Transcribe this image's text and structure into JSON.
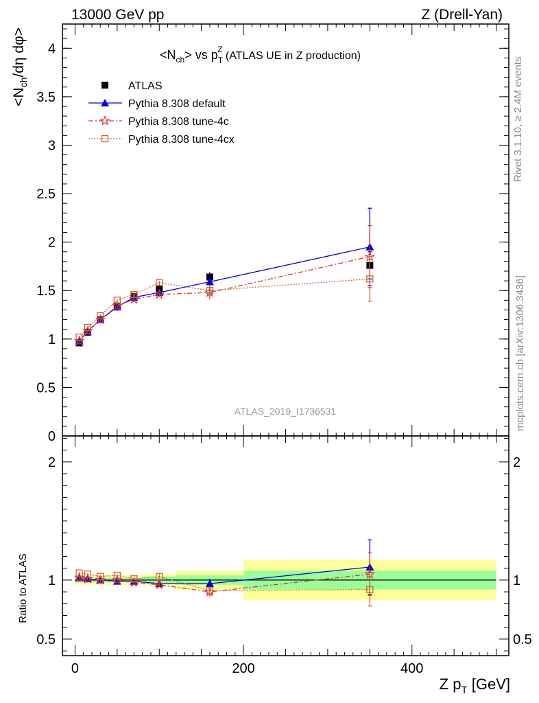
{
  "header": {
    "left": "13000 GeV pp",
    "right": "Z (Drell-Yan)"
  },
  "side_labels": {
    "rivet": "Rivet 3.1.10, ≥ 2.4M events",
    "mcplots": "mcplots.cern.ch [arXiv:1306.3436]"
  },
  "watermark": "ATLAS_2019_I1736531",
  "colors": {
    "atlas": "#000000",
    "default": "#0000dd",
    "tune4c": "#dd3333",
    "tune4cx": "#cc6633",
    "band_inner": "#99ff99",
    "band_outer": "#ffff99"
  },
  "chart_data": [
    {
      "type": "line",
      "panel": "main",
      "title": "<N_ch> vs p_T^Z (ATLAS UE in Z production)",
      "title_parts": {
        "a": "<N",
        "a_sub": "ch",
        "b": "> vs p",
        "b_sub": "T",
        "b_sup": "Z",
        "c": " (ATLAS UE in Z production)"
      },
      "ylabel": "<N_ch/dη dφ>",
      "ylabel_parts": {
        "a": "<N",
        "a_sub": "ch",
        "b": "/dη dφ>"
      },
      "xlim": [
        -15,
        515
      ],
      "ylim": [
        0,
        4.25
      ],
      "y_ticks": [
        0,
        0.5,
        1,
        1.5,
        2,
        2.5,
        3,
        3.5,
        4
      ],
      "y_tick_labels": [
        "0",
        "0.5",
        "1",
        "1.5",
        "2",
        "2.5",
        "3",
        "3.5",
        "4"
      ],
      "legend_position": "top-left",
      "series": [
        {
          "name": "ATLAS",
          "key": "atlas",
          "marker": "square-filled",
          "points": [
            {
              "x": 5,
              "y": 0.96,
              "err": 0.02
            },
            {
              "x": 15,
              "y": 1.07,
              "err": 0.02
            },
            {
              "x": 30,
              "y": 1.2,
              "err": 0.02
            },
            {
              "x": 50,
              "y": 1.34,
              "err": 0.03
            },
            {
              "x": 70,
              "y": 1.44,
              "err": 0.03
            },
            {
              "x": 100,
              "y": 1.52,
              "err": 0.04
            },
            {
              "x": 160,
              "y": 1.64,
              "err": 0.05
            },
            {
              "x": 350,
              "y": 1.76,
              "err": 0.14
            }
          ]
        },
        {
          "name": "Pythia 8.308 default",
          "key": "default",
          "marker": "triangle-filled",
          "dash": "",
          "points": [
            {
              "x": 5,
              "y": 0.98,
              "err": 0.01
            },
            {
              "x": 15,
              "y": 1.08,
              "err": 0.01
            },
            {
              "x": 30,
              "y": 1.2,
              "err": 0.01
            },
            {
              "x": 50,
              "y": 1.33,
              "err": 0.01
            },
            {
              "x": 70,
              "y": 1.43,
              "err": 0.02
            },
            {
              "x": 100,
              "y": 1.48,
              "err": 0.02
            },
            {
              "x": 160,
              "y": 1.59,
              "err": 0.05
            },
            {
              "x": 350,
              "y": 1.95,
              "err": 0.4
            }
          ]
        },
        {
          "name": "Pythia 8.308 tune-4c",
          "key": "tune4c",
          "marker": "star-open",
          "dash": "7,3,2,3",
          "points": [
            {
              "x": 5,
              "y": 0.98,
              "err": 0.01
            },
            {
              "x": 15,
              "y": 1.08,
              "err": 0.01
            },
            {
              "x": 30,
              "y": 1.2,
              "err": 0.01
            },
            {
              "x": 50,
              "y": 1.34,
              "err": 0.01
            },
            {
              "x": 70,
              "y": 1.41,
              "err": 0.02
            },
            {
              "x": 100,
              "y": 1.46,
              "err": 0.02
            },
            {
              "x": 160,
              "y": 1.48,
              "err": 0.07
            },
            {
              "x": 350,
              "y": 1.85,
              "err": 0.32
            }
          ]
        },
        {
          "name": "Pythia 8.308 tune-4cx",
          "key": "tune4cx",
          "marker": "square-open",
          "dash": "2,2",
          "points": [
            {
              "x": 5,
              "y": 1.02,
              "err": 0.01
            },
            {
              "x": 15,
              "y": 1.12,
              "err": 0.01
            },
            {
              "x": 30,
              "y": 1.24,
              "err": 0.01
            },
            {
              "x": 50,
              "y": 1.4,
              "err": 0.01
            },
            {
              "x": 70,
              "y": 1.46,
              "err": 0.02
            },
            {
              "x": 100,
              "y": 1.58,
              "err": 0.02
            },
            {
              "x": 160,
              "y": 1.5,
              "err": 0.06
            },
            {
              "x": 350,
              "y": 1.62,
              "err": 0.23
            }
          ]
        }
      ]
    },
    {
      "type": "line",
      "panel": "ratio",
      "ylabel": "Ratio to ATLAS",
      "xlabel": "Z p_T [GeV]",
      "xlabel_parts": {
        "a": "Z p",
        "a_sub": "T",
        "b": " [GeV]"
      },
      "xlim": [
        -15,
        515
      ],
      "ylim": [
        0.36,
        2.22
      ],
      "y_ticks": [
        0.5,
        1,
        2
      ],
      "y_tick_labels": [
        "0.5",
        "1",
        "2"
      ],
      "x_ticks": [
        0,
        200,
        400
      ],
      "x_tick_labels": [
        "0",
        "200",
        "400"
      ],
      "bands": [
        {
          "x0": 0,
          "x1": 10,
          "stat": 0.02,
          "total": 0.04
        },
        {
          "x0": 10,
          "x1": 20,
          "stat": 0.02,
          "total": 0.04
        },
        {
          "x0": 20,
          "x1": 40,
          "stat": 0.02,
          "total": 0.04
        },
        {
          "x0": 40,
          "x1": 60,
          "stat": 0.02,
          "total": 0.04
        },
        {
          "x0": 60,
          "x1": 80,
          "stat": 0.02,
          "total": 0.04
        },
        {
          "x0": 80,
          "x1": 120,
          "stat": 0.03,
          "total": 0.05
        },
        {
          "x0": 120,
          "x1": 200,
          "stat": 0.04,
          "total": 0.08
        },
        {
          "x0": 200,
          "x1": 500,
          "stat": 0.08,
          "total": 0.17
        }
      ],
      "series": [
        {
          "name": "Pythia 8.308 default",
          "key": "default",
          "marker": "triangle-filled",
          "dash": "",
          "points": [
            {
              "x": 5,
              "y": 1.02,
              "err": 0.01
            },
            {
              "x": 15,
              "y": 1.01,
              "err": 0.01
            },
            {
              "x": 30,
              "y": 1.0,
              "err": 0.01
            },
            {
              "x": 50,
              "y": 0.99,
              "err": 0.01
            },
            {
              "x": 70,
              "y": 0.99,
              "err": 0.01
            },
            {
              "x": 100,
              "y": 0.97,
              "err": 0.02
            },
            {
              "x": 160,
              "y": 0.97,
              "err": 0.04
            },
            {
              "x": 350,
              "y": 1.11,
              "err": 0.23
            }
          ]
        },
        {
          "name": "Pythia 8.308 tune-4c",
          "key": "tune4c",
          "marker": "star-open",
          "dash": "7,3,2,3",
          "points": [
            {
              "x": 5,
              "y": 1.02,
              "err": 0.01
            },
            {
              "x": 15,
              "y": 1.01,
              "err": 0.01
            },
            {
              "x": 30,
              "y": 1.0,
              "err": 0.01
            },
            {
              "x": 50,
              "y": 1.0,
              "err": 0.01
            },
            {
              "x": 70,
              "y": 0.98,
              "err": 0.01
            },
            {
              "x": 100,
              "y": 0.96,
              "err": 0.02
            },
            {
              "x": 160,
              "y": 0.9,
              "err": 0.04
            },
            {
              "x": 350,
              "y": 1.05,
              "err": 0.18
            }
          ]
        },
        {
          "name": "Pythia 8.308 tune-4cx",
          "key": "tune4cx",
          "marker": "square-open",
          "dash": "2,2",
          "points": [
            {
              "x": 5,
              "y": 1.06,
              "err": 0.01
            },
            {
              "x": 15,
              "y": 1.05,
              "err": 0.01
            },
            {
              "x": 30,
              "y": 1.03,
              "err": 0.01
            },
            {
              "x": 50,
              "y": 1.04,
              "err": 0.01
            },
            {
              "x": 70,
              "y": 1.01,
              "err": 0.01
            },
            {
              "x": 100,
              "y": 1.03,
              "err": 0.02
            },
            {
              "x": 160,
              "y": 0.91,
              "err": 0.04
            },
            {
              "x": 350,
              "y": 0.92,
              "err": 0.14
            }
          ]
        }
      ]
    }
  ]
}
